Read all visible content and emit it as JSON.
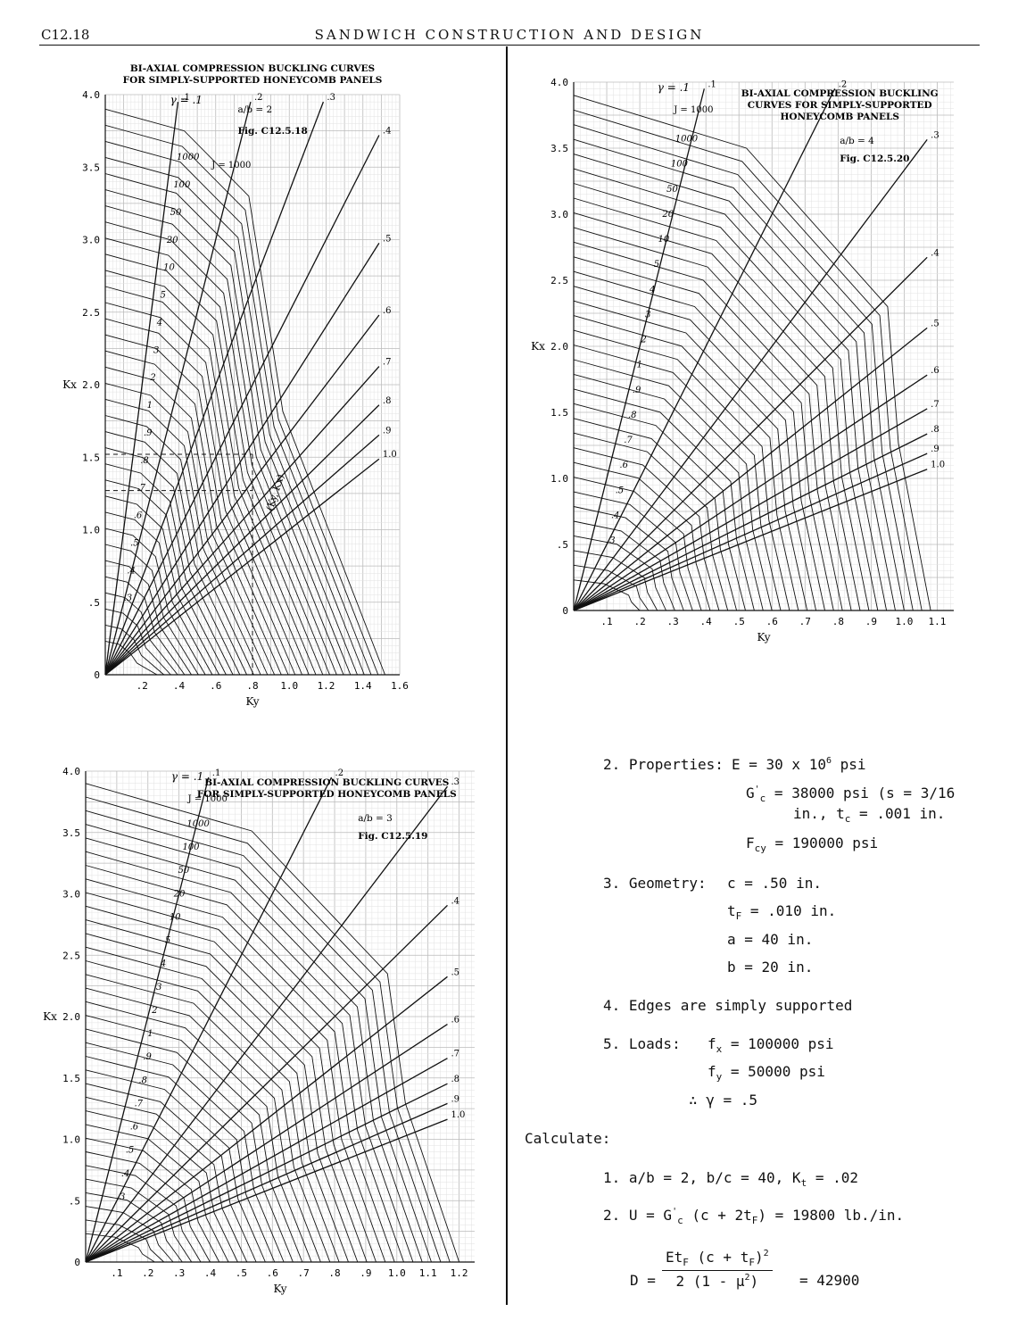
{
  "header": {
    "page": "C12.18",
    "title": "SANDWICH CONSTRUCTION AND DESIGN"
  },
  "charts": [
    {
      "title_line1": "BI-AXIAL COMPRESSION BUCKLING CURVES",
      "title_line2": "FOR SIMPLY-SUPPORTED HONEYCOMB PANELS",
      "aspect_label": "a/b = 2",
      "fig_label": "Fig. C12.5.18",
      "gamma_label": "γ = .1",
      "j_label": "J = 1000",
      "xlabel": "Ky",
      "ylabel": "Kx",
      "xticks": [
        ".2",
        ".4",
        ".6",
        ".8",
        "1.0",
        "1.2",
        "1.4",
        "1.6"
      ],
      "yticks": [
        "0",
        ".5",
        "1.0",
        "1.5",
        "2.0",
        "2.5",
        "3.0",
        "3.5",
        "4.0"
      ]
    },
    {
      "title_line1": "BI-AXIAL COMPRESSION BUCKLING",
      "title_line2": "CURVES FOR SIMPLY-SUPPORTED",
      "title_line3": "HONEYCOMB PANELS",
      "aspect_label": "a/b = 4",
      "fig_label": "Fig. C12.5.20",
      "gamma_label": "γ = .1",
      "j_label": "J = 1000",
      "xlabel": "Ky",
      "ylabel": "Kx",
      "xticks": [
        ".1",
        ".2",
        ".3",
        ".4",
        ".5",
        ".6",
        ".7",
        ".8",
        ".9",
        "1.0",
        "1.1"
      ],
      "yticks": [
        "0",
        ".5",
        "1.0",
        "1.5",
        "2.0",
        "2.5",
        "3.0",
        "3.5",
        "4.0"
      ]
    },
    {
      "title_line1": "BI-AXIAL COMPRESSION BUCKLING CURVES",
      "title_line2": "FOR SIMPLY-SUPPORTED HONEYCOMB PANELS",
      "aspect_label": "a/b = 3",
      "fig_label": "Fig. C12.5.19",
      "gamma_label": "γ = .1",
      "j_label": "J = 1000",
      "xlabel": "Ky",
      "ylabel": "Kx",
      "xticks": [
        ".1",
        ".2",
        ".3",
        ".4",
        ".5",
        ".6",
        ".7",
        ".8",
        ".9",
        "1.0",
        "1.1",
        "1.2"
      ],
      "yticks": [
        "0",
        ".5",
        "1.0",
        "1.5",
        "2.0",
        "2.5",
        "3.0",
        "3.5",
        "4.0"
      ]
    }
  ],
  "chart_data": [
    {
      "type": "line",
      "title": "BI-AXIAL COMPRESSION BUCKLING CURVES FOR SIMPLY-SUPPORTED HONEYCOMB PANELS",
      "xlabel": "Ky",
      "ylabel": "Kx",
      "xlim": [
        0,
        1.6
      ],
      "ylim": [
        0,
        4.0
      ],
      "grid": true,
      "gamma_rays": [
        ".1",
        ".2",
        ".3",
        ".4",
        ".5",
        ".6",
        ".7",
        ".8",
        ".9",
        "1.0"
      ],
      "j_curve_labels": [
        "1000",
        "100",
        "50",
        "20",
        "10",
        "5",
        "4",
        "3",
        "2",
        "1",
        ".9",
        ".8",
        ".7",
        ".6",
        ".5",
        ".4",
        ".3"
      ],
      "annotation": "(Ky, Kx)"
    },
    {
      "type": "line",
      "title": "BI-AXIAL COMPRESSION BUCKLING CURVES FOR SIMPLY-SUPPORTED HONEYCOMB PANELS",
      "xlabel": "Ky",
      "ylabel": "Kx",
      "xlim": [
        0,
        1.15
      ],
      "ylim": [
        0,
        4.0
      ],
      "grid": true,
      "gamma_rays": [
        ".1",
        ".2",
        ".3",
        ".4",
        ".5",
        ".6",
        ".7",
        ".8",
        ".9",
        "1.0"
      ],
      "j_curve_labels": [
        "1000",
        "100",
        "50",
        "20",
        "10",
        "5",
        "4",
        "3",
        "2",
        "1",
        ".9",
        ".8",
        ".7",
        ".6",
        ".5",
        ".4",
        ".3"
      ]
    },
    {
      "type": "line",
      "title": "BI-AXIAL COMPRESSION BUCKLING CURVES FOR SIMPLY-SUPPORTED HONEYCOMB PANELS",
      "xlabel": "Ky",
      "ylabel": "Kx",
      "xlim": [
        0,
        1.25
      ],
      "ylim": [
        0,
        4.0
      ],
      "grid": true,
      "gamma_rays": [
        ".1",
        ".2",
        ".3",
        ".4",
        ".5",
        ".6",
        ".7",
        ".8",
        ".9",
        "1.0"
      ],
      "j_curve_labels": [
        "1000",
        "100",
        "50",
        "20",
        "10",
        "5",
        "4",
        "3",
        "2",
        "1",
        ".9",
        ".8",
        ".7",
        ".6",
        ".5",
        ".4",
        ".3"
      ]
    }
  ],
  "text": {
    "p2_label": "2. Properties:",
    "p2_e": "E = 30 x 10",
    "p2_e_exp": "6",
    "p2_e_unit": " psi",
    "p2_g_prefix": "G",
    "p2_g_mark": "'",
    "p2_g_sub": "c",
    "p2_g_rest": " = 38000 psi (s = 3/16",
    "p2_g_line2": "in., t",
    "p2_g_line2_sub": "c",
    "p2_g_line2_rest": " = .001 in.",
    "p2_f_prefix": "F",
    "p2_f_sub": "cy",
    "p2_f_rest": " = 190000 psi",
    "p3_label": "3. Geometry:",
    "p3_c": "c  = .50 in.",
    "p3_t_prefix": "t",
    "p3_t_sub": "F",
    "p3_t_rest": " = .010 in.",
    "p3_a": "a  = 40 in.",
    "p3_b": "b  = 20 in.",
    "p4": "4. Edges are simply supported",
    "p5_label": "5. Loads:",
    "p5_fx_prefix": "f",
    "p5_fx_sub": "x",
    "p5_fx_rest": " = 100000 psi",
    "p5_fy_prefix": "f",
    "p5_fy_sub": "y",
    "p5_fy_rest": " = 50000 psi",
    "p5_gamma": "∴ γ = .5",
    "calc_label": "Calculate:",
    "c1_prefix": "1. a/b = 2, b/c = 40, K",
    "c1_sub": "t",
    "c1_rest": " = .02",
    "c2_prefix": "2. U = G",
    "c2_mark": "'",
    "c2_sub": "c",
    "c2_mid": " (c + 2t",
    "c2_sub2": "F",
    "c2_rest": ") = 19800 lb./in.",
    "d_label": "D =",
    "d_num_a": "Et",
    "d_num_sub": "F",
    "d_num_b": " (c + t",
    "d_num_sub2": "F",
    "d_num_c": ")",
    "d_num_exp": "2",
    "d_den": "2 (1 - μ",
    "d_den_exp": "2",
    "d_den_end": ")",
    "d_result": "= 42900"
  }
}
